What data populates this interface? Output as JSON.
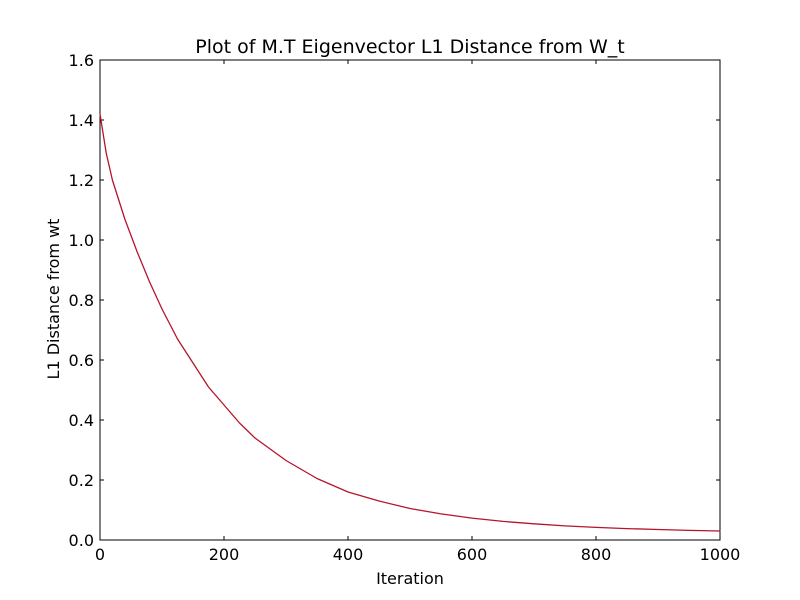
{
  "chart_data": {
    "type": "line",
    "title": "Plot of M.T Eigenvector L1 Distance from W_t",
    "xlabel": "Iteration",
    "ylabel": "L1 Distance from wt",
    "xlim": [
      0,
      1000
    ],
    "ylim": [
      0.0,
      1.6
    ],
    "xticks": [
      0,
      200,
      400,
      600,
      800,
      1000
    ],
    "xtick_labels": [
      "0",
      "200",
      "400",
      "600",
      "800",
      "1000"
    ],
    "yticks": [
      0.0,
      0.2,
      0.4,
      0.6,
      0.8,
      1.0,
      1.2,
      1.4,
      1.6
    ],
    "ytick_labels": [
      "0.0",
      "0.2",
      "0.4",
      "0.6",
      "0.8",
      "1.0",
      "1.2",
      "1.4",
      "1.6"
    ],
    "grid": false,
    "legend": "none",
    "line_color": "#b5152b",
    "series": [
      {
        "x": [
          0,
          10,
          20,
          40,
          60,
          80,
          100,
          125,
          150,
          175,
          200,
          225,
          250,
          300,
          350,
          400,
          450,
          500,
          550,
          600,
          650,
          700,
          750,
          800,
          850,
          900,
          950,
          1000
        ],
        "values": [
          1.42,
          1.29,
          1.2,
          1.07,
          0.96,
          0.86,
          0.77,
          0.67,
          0.59,
          0.51,
          0.45,
          0.39,
          0.34,
          0.265,
          0.205,
          0.16,
          0.13,
          0.105,
          0.087,
          0.073,
          0.062,
          0.054,
          0.047,
          0.042,
          0.038,
          0.035,
          0.032,
          0.03
        ]
      }
    ]
  }
}
